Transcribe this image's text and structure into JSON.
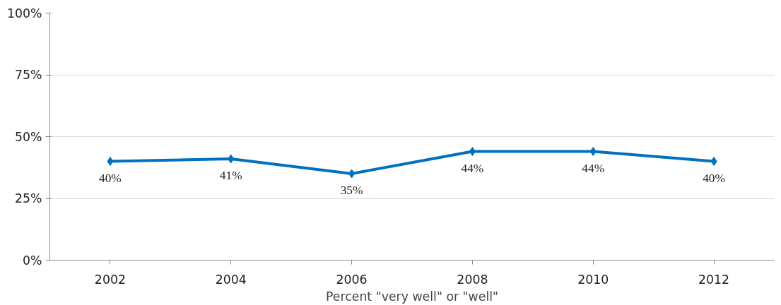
{
  "chart_data": {
    "type": "line",
    "xlabel": "Percent \"very well\" or \"well\"",
    "categories": [
      "2002",
      "2004",
      "2006",
      "2008",
      "2010",
      "2012"
    ],
    "series": [
      {
        "color": "#0070c0",
        "values": [
          40,
          41,
          35,
          44,
          44,
          40
        ],
        "value_labels": [
          "40%",
          "41%",
          "35%",
          "44%",
          "44%",
          "40%"
        ]
      }
    ],
    "ylim": [
      0,
      100
    ],
    "yticks": [
      {
        "value": 0,
        "label": "0%"
      },
      {
        "value": 25,
        "label": "25%"
      },
      {
        "value": 50,
        "label": "50%"
      },
      {
        "value": 75,
        "label": "75%"
      },
      {
        "value": 100,
        "label": "100%"
      }
    ],
    "grid": "y",
    "marker": "diamond",
    "line_style": "solid"
  }
}
